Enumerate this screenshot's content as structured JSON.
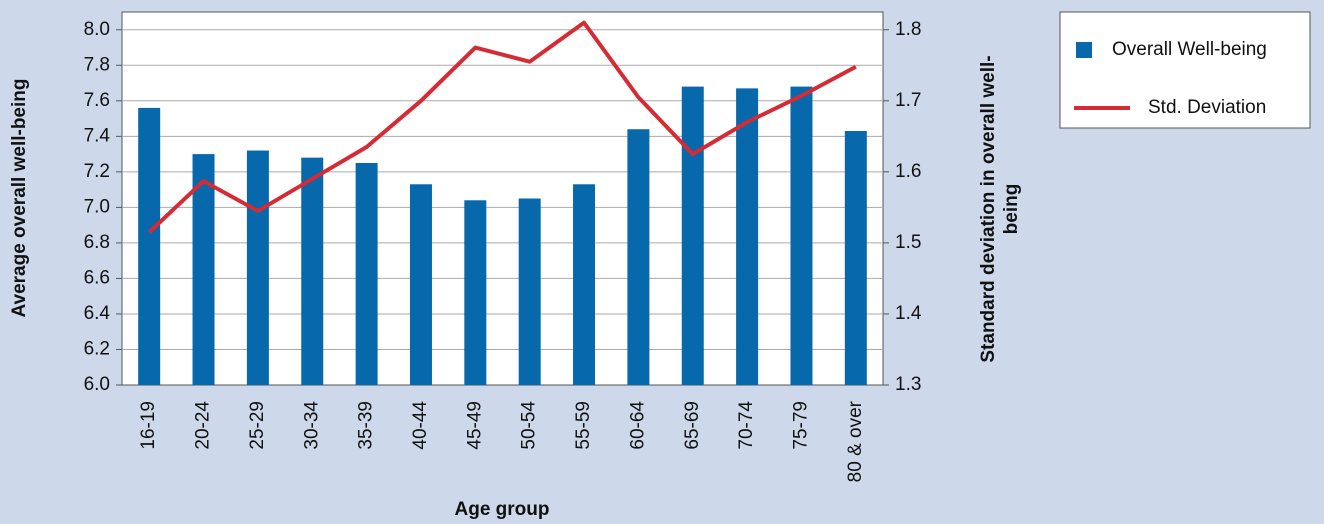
{
  "chart_data": {
    "type": "bar",
    "x_label": "Age group",
    "y_label": "Average overall well-being",
    "y2_label": "Standard deviation in overall well-being",
    "categories": [
      "16-19",
      "20-24",
      "25-29",
      "30-34",
      "35-39",
      "40-44",
      "45-49",
      "50-54",
      "55-59",
      "60-64",
      "65-69",
      "70-74",
      "75-79",
      "80 & over"
    ],
    "series": [
      {
        "name": "Overall Well-being",
        "type": "bar",
        "color": "#0868ac",
        "values": [
          7.56,
          7.3,
          7.32,
          7.28,
          7.25,
          7.13,
          7.04,
          7.05,
          7.13,
          7.44,
          7.68,
          7.67,
          7.68,
          7.43
        ]
      },
      {
        "name": "Std. Deviation",
        "type": "line",
        "axis": "y2",
        "color": "#d52b35",
        "values": [
          1.515,
          1.587,
          1.545,
          1.59,
          1.635,
          1.7,
          1.775,
          1.755,
          1.81,
          1.705,
          1.625,
          1.67,
          1.707,
          1.748
        ]
      }
    ],
    "ylim": [
      6.0,
      8.1
    ],
    "yticks": [
      {
        "value": 6,
        "label": "6.0"
      },
      6.2,
      6.4,
      6.6,
      6.8,
      {
        "value": 7,
        "label": "7.0"
      },
      7.2,
      7.4,
      7.6,
      7.8,
      {
        "value": 8,
        "label": "8.0"
      }
    ],
    "y2lim": [
      1.3,
      1.825
    ],
    "y2ticks": [
      1.3,
      1.4,
      1.5,
      1.6,
      1.7,
      1.8
    ],
    "grid": true,
    "legend": "right"
  }
}
